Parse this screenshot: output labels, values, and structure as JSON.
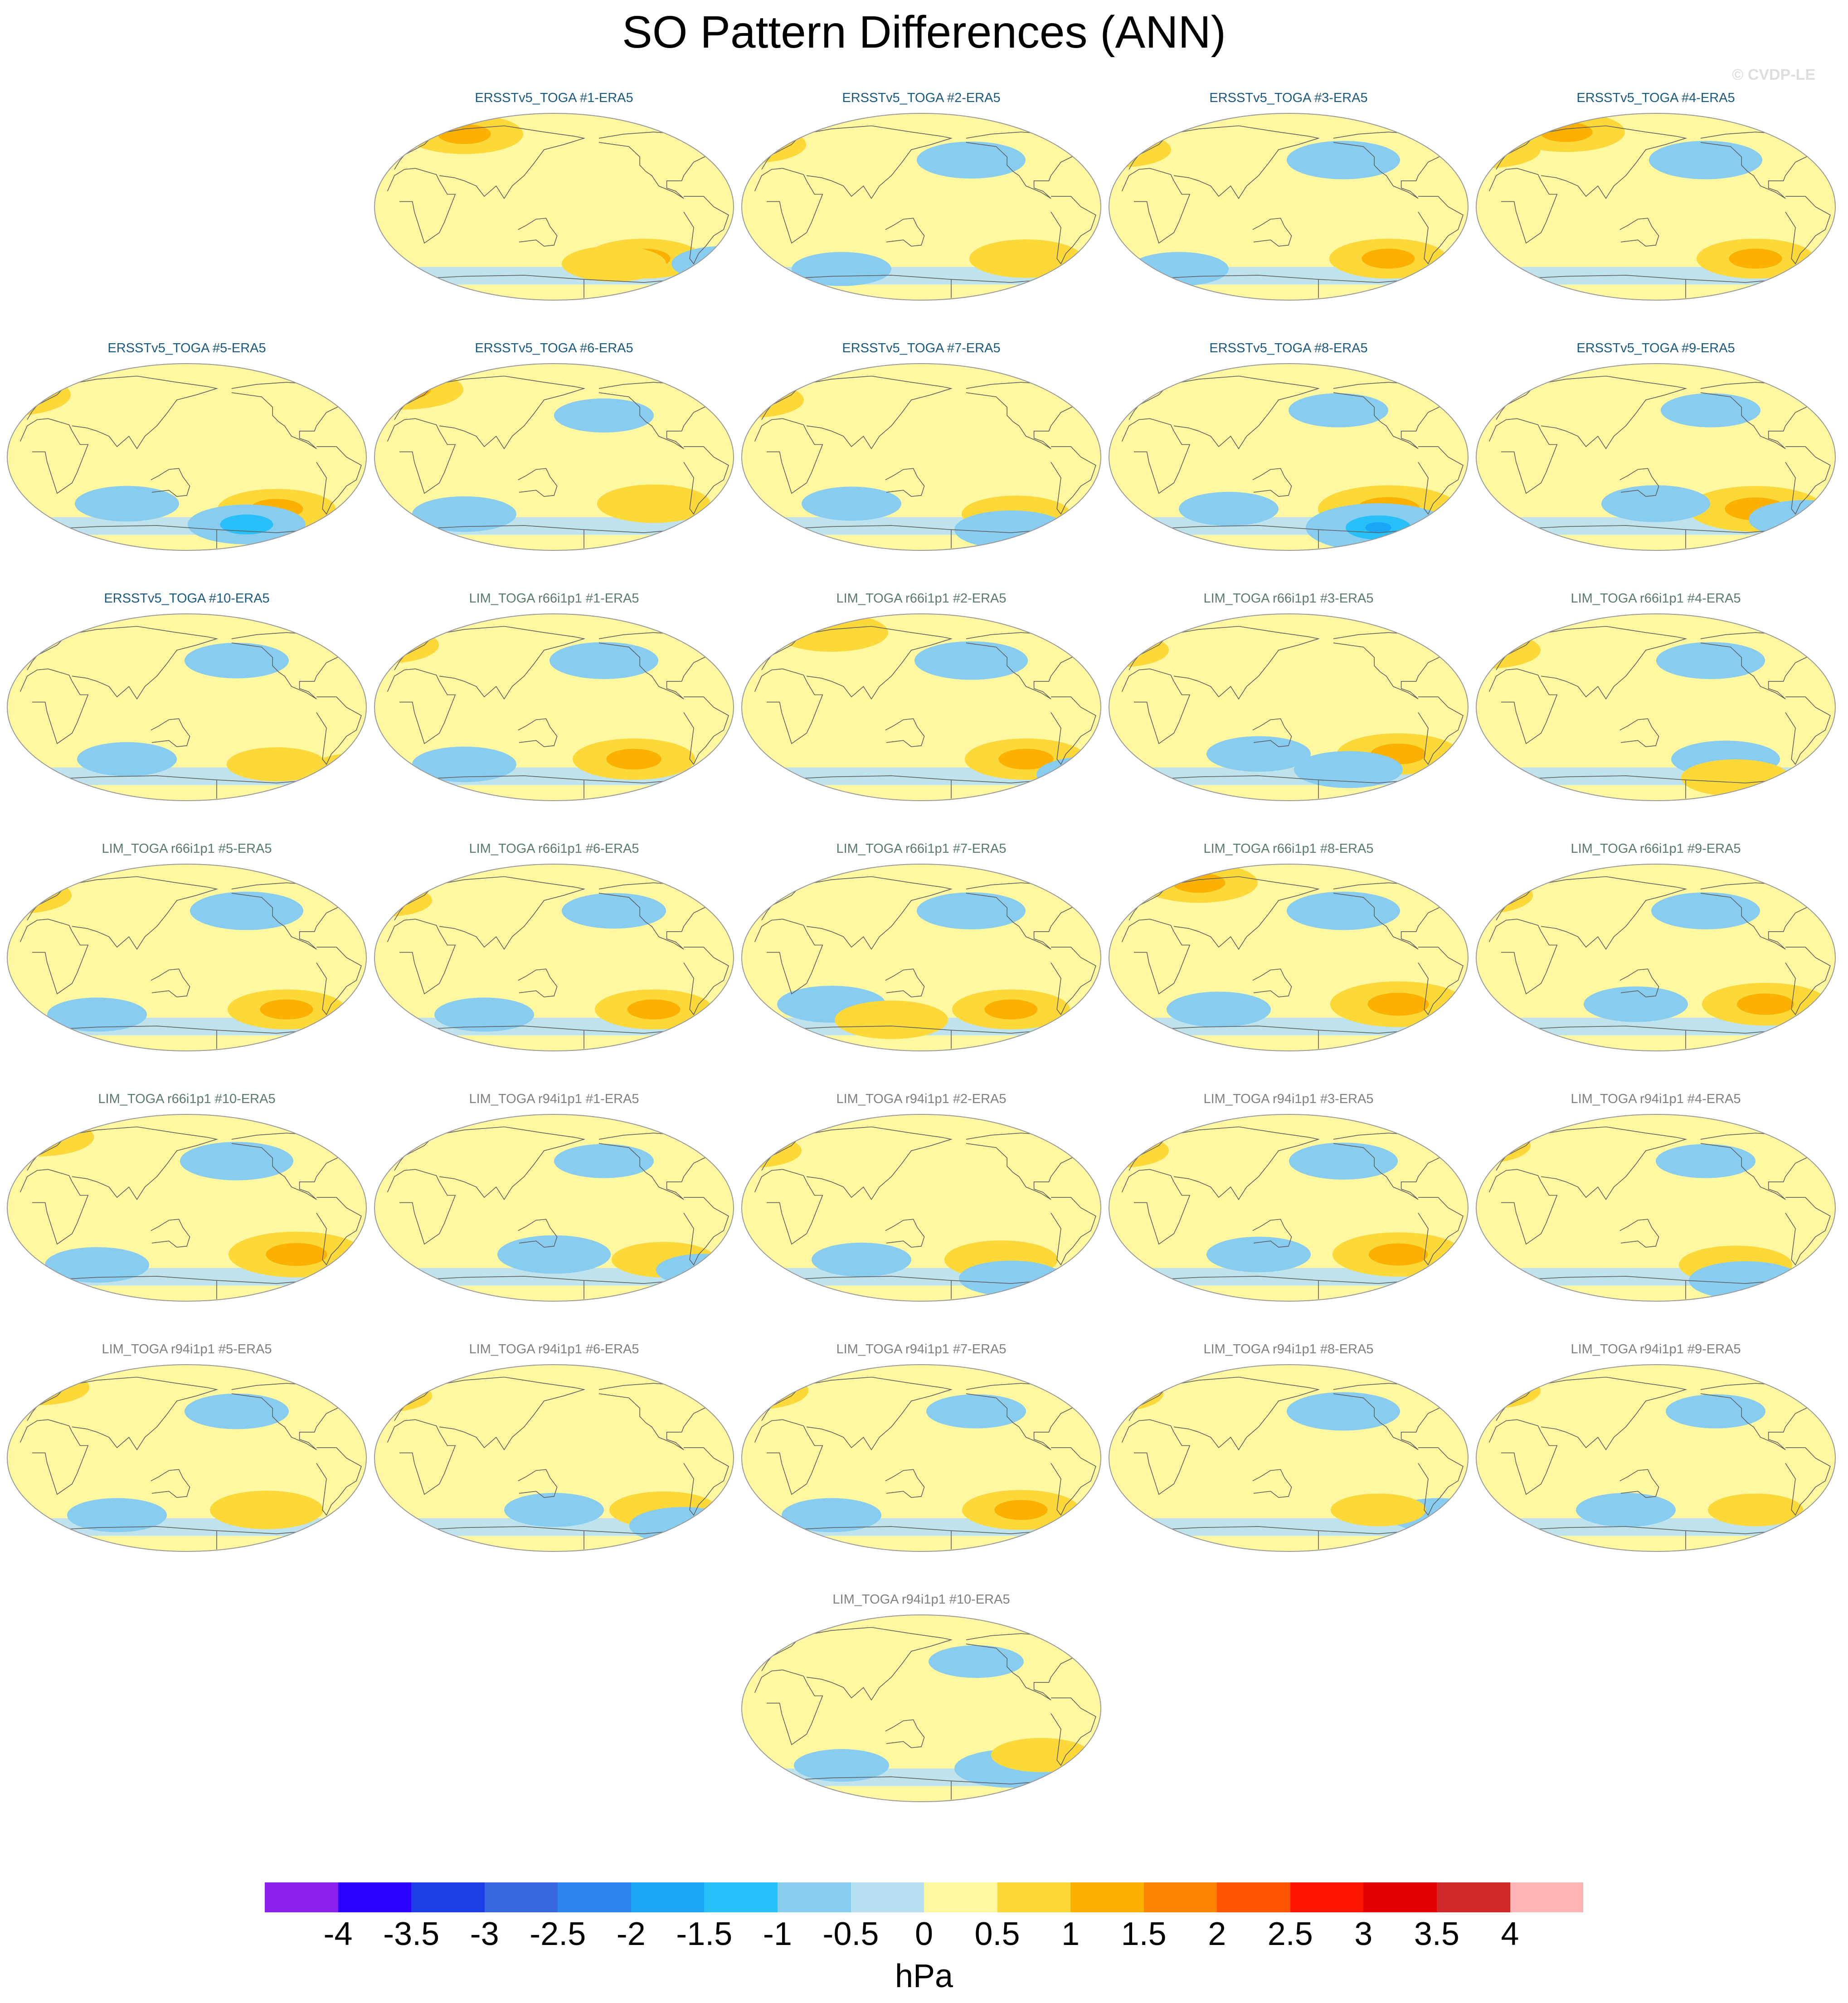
{
  "title": "SO Pattern Differences (ANN)",
  "credit": "© CVDP-LE",
  "units": "hPa",
  "colors": {
    "title_ersst": "#1a5a80",
    "title_lim66": "#5a7a6a",
    "title_lim94": "#808080",
    "land_outline": "#606060",
    "globe_outline": "#9a9a9a"
  },
  "colorbar": {
    "labels": [
      "-4",
      "-3.5",
      "-3",
      "-2.5",
      "-2",
      "-1.5",
      "-1",
      "-0.5",
      "0",
      "0.5",
      "1",
      "1.5",
      "2",
      "2.5",
      "3",
      "3.5",
      "4"
    ],
    "colors": [
      "#8a20ee",
      "#2a00ff",
      "#1c3ee6",
      "#3868e0",
      "#2e84f0",
      "#1aa6f6",
      "#28c0f8",
      "#88cdf0",
      "#b8e0f4",
      "#fff8a0",
      "#fcd838",
      "#fcb000",
      "#fc8400",
      "#fc5400",
      "#fc1400",
      "#e00000",
      "#d02828",
      "#fcb4b4"
    ]
  },
  "chart_data": {
    "type": "heatmap",
    "title": "SO Pattern Differences (ANN)",
    "projection": "global map",
    "colorbar_units": "hPa",
    "levels": [
      -4,
      -3.5,
      -3,
      -2.5,
      -2,
      -1.5,
      -1,
      -0.5,
      0,
      0.5,
      1,
      1.5,
      2,
      2.5,
      3,
      3.5,
      4
    ],
    "panels": [
      {
        "title": "ERSSTv5_TOGA #1-ERA5",
        "group": "ersst",
        "features": [
          {
            "lon": 60,
            "lat": 70,
            "value": 1.0
          },
          {
            "lon": -120,
            "lat": -50,
            "value": 1.0
          },
          {
            "lon": -150,
            "lat": -55,
            "value": 0.7
          },
          {
            "lon": -40,
            "lat": -55,
            "value": -0.7
          }
        ]
      },
      {
        "title": "ERSSTv5_TOGA #2-ERA5",
        "group": "ersst",
        "features": [
          {
            "lon": -160,
            "lat": 45,
            "value": -0.8
          },
          {
            "lon": -105,
            "lat": -50,
            "value": 0.9
          },
          {
            "lon": -20,
            "lat": 60,
            "value": 0.8
          },
          {
            "lon": 70,
            "lat": -60,
            "value": -0.6
          }
        ]
      },
      {
        "title": "ERSSTv5_TOGA #3-ERA5",
        "group": "ersst",
        "features": [
          {
            "lon": -155,
            "lat": 45,
            "value": -0.9
          },
          {
            "lon": -110,
            "lat": -50,
            "value": 1.0
          },
          {
            "lon": -20,
            "lat": 55,
            "value": 0.7
          },
          {
            "lon": 40,
            "lat": -60,
            "value": -0.6
          }
        ]
      },
      {
        "title": "ERSSTv5_TOGA #4-ERA5",
        "group": "ersst",
        "features": [
          {
            "lon": 60,
            "lat": 72,
            "value": 1.0
          },
          {
            "lon": -160,
            "lat": 45,
            "value": -0.9
          },
          {
            "lon": -110,
            "lat": -50,
            "value": 1.0
          },
          {
            "lon": -20,
            "lat": 55,
            "value": 0.8
          }
        ]
      },
      {
        "title": "ERSSTv5_TOGA #5-ERA5",
        "group": "ersst",
        "features": [
          {
            "lon": -30,
            "lat": 60,
            "value": 1.2
          },
          {
            "lon": -120,
            "lat": -50,
            "value": 1.0
          },
          {
            "lon": -150,
            "lat": -65,
            "value": -1.0
          },
          {
            "lon": 90,
            "lat": -45,
            "value": -0.7
          }
        ]
      },
      {
        "title": "ERSSTv5_TOGA #6-ERA5",
        "group": "ersst",
        "features": [
          {
            "lon": 0,
            "lat": 65,
            "value": 1.0
          },
          {
            "lon": -110,
            "lat": -45,
            "value": 0.9
          },
          {
            "lon": 60,
            "lat": -55,
            "value": -0.7
          },
          {
            "lon": -160,
            "lat": 40,
            "value": -0.6
          }
        ]
      },
      {
        "title": "ERSSTv5_TOGA #7-ERA5",
        "group": "ersst",
        "features": [
          {
            "lon": -115,
            "lat": -55,
            "value": 0.8
          },
          {
            "lon": -120,
            "lat": -70,
            "value": -0.9
          },
          {
            "lon": -20,
            "lat": 55,
            "value": 0.7
          },
          {
            "lon": 80,
            "lat": -45,
            "value": -0.6
          }
        ]
      },
      {
        "title": "ERSSTv5_TOGA #8-ERA5",
        "group": "ersst",
        "features": [
          {
            "lon": -110,
            "lat": -50,
            "value": 1.5
          },
          {
            "lon": -120,
            "lat": -68,
            "value": -1.6
          },
          {
            "lon": -160,
            "lat": 45,
            "value": -0.6
          },
          {
            "lon": 90,
            "lat": -50,
            "value": -0.6
          }
        ]
      },
      {
        "title": "ERSSTv5_TOGA #9-ERA5",
        "group": "ersst",
        "features": [
          {
            "lon": -110,
            "lat": -50,
            "value": 1.4
          },
          {
            "lon": -60,
            "lat": -60,
            "value": -0.9
          },
          {
            "lon": 150,
            "lat": -45,
            "value": -0.8
          },
          {
            "lon": -155,
            "lat": 45,
            "value": -0.6
          }
        ]
      },
      {
        "title": "ERSSTv5_TOGA #10-ERA5",
        "group": "ersst",
        "features": [
          {
            "lon": -160,
            "lat": 45,
            "value": -0.7
          },
          {
            "lon": -120,
            "lat": -55,
            "value": 0.6
          },
          {
            "lon": 90,
            "lat": -50,
            "value": -0.6
          },
          {
            "lon": -40,
            "lat": -60,
            "value": 0.5
          }
        ]
      },
      {
        "title": "LIM_TOGA r66i1p1 #1-ERA5",
        "group": "lim66",
        "features": [
          {
            "lon": -130,
            "lat": -50,
            "value": 1.1
          },
          {
            "lon": -160,
            "lat": 45,
            "value": -0.8
          },
          {
            "lon": -20,
            "lat": 60,
            "value": 0.8
          },
          {
            "lon": 60,
            "lat": -55,
            "value": -0.7
          }
        ]
      },
      {
        "title": "LIM_TOGA r66i1p1 #2-ERA5",
        "group": "lim66",
        "features": [
          {
            "lon": -105,
            "lat": -50,
            "value": 1.1
          },
          {
            "lon": -160,
            "lat": 45,
            "value": -0.9
          },
          {
            "lon": 60,
            "lat": 72,
            "value": 0.9
          },
          {
            "lon": -40,
            "lat": -65,
            "value": -0.8
          }
        ]
      },
      {
        "title": "LIM_TOGA r66i1p1 #3-ERA5",
        "group": "lim66",
        "features": [
          {
            "lon": -100,
            "lat": -45,
            "value": 1.1
          },
          {
            "lon": -150,
            "lat": -60,
            "value": -0.8
          },
          {
            "lon": 120,
            "lat": -45,
            "value": -0.7
          },
          {
            "lon": -20,
            "lat": 55,
            "value": 0.6
          }
        ]
      },
      {
        "title": "LIM_TOGA r66i1p1 #4-ERA5",
        "group": "lim66",
        "features": [
          {
            "lon": -140,
            "lat": -50,
            "value": -0.8
          },
          {
            "lon": -130,
            "lat": -68,
            "value": 0.8
          },
          {
            "lon": -155,
            "lat": 45,
            "value": -0.8
          },
          {
            "lon": -20,
            "lat": 55,
            "value": 0.8
          }
        ]
      },
      {
        "title": "LIM_TOGA r66i1p1 #5-ERA5",
        "group": "lim66",
        "features": [
          {
            "lon": -150,
            "lat": 45,
            "value": -0.9
          },
          {
            "lon": -110,
            "lat": -50,
            "value": 1.0
          },
          {
            "lon": -20,
            "lat": 60,
            "value": 0.8
          },
          {
            "lon": 60,
            "lat": -55,
            "value": -0.6
          }
        ]
      },
      {
        "title": "LIM_TOGA r66i1p1 #6-ERA5",
        "group": "lim66",
        "features": [
          {
            "lon": -110,
            "lat": -50,
            "value": 1.0
          },
          {
            "lon": -150,
            "lat": 45,
            "value": -0.7
          },
          {
            "lon": 80,
            "lat": -55,
            "value": -0.6
          },
          {
            "lon": -20,
            "lat": 55,
            "value": 0.5
          }
        ]
      },
      {
        "title": "LIM_TOGA r66i1p1 #7-ERA5",
        "group": "lim66",
        "features": [
          {
            "lon": -120,
            "lat": -50,
            "value": 1.0
          },
          {
            "lon": -160,
            "lat": 45,
            "value": -0.8
          },
          {
            "lon": 60,
            "lat": -45,
            "value": -0.8
          },
          {
            "lon": 120,
            "lat": -60,
            "value": 0.9
          }
        ]
      },
      {
        "title": "LIM_TOGA r66i1p1 #8-ERA5",
        "group": "lim66",
        "features": [
          {
            "lon": -100,
            "lat": -45,
            "value": 1.4
          },
          {
            "lon": -155,
            "lat": 45,
            "value": -0.9
          },
          {
            "lon": 60,
            "lat": 72,
            "value": 1.0
          },
          {
            "lon": 80,
            "lat": -50,
            "value": -0.7
          }
        ]
      },
      {
        "title": "LIM_TOGA r66i1p1 #9-ERA5",
        "group": "lim66",
        "features": [
          {
            "lon": -100,
            "lat": -45,
            "value": 1.2
          },
          {
            "lon": -160,
            "lat": 45,
            "value": -0.8
          },
          {
            "lon": -30,
            "lat": 60,
            "value": 0.9
          },
          {
            "lon": 130,
            "lat": -45,
            "value": -0.7
          }
        ]
      },
      {
        "title": "LIM_TOGA r66i1p1 #10-ERA5",
        "group": "lim66",
        "features": [
          {
            "lon": -100,
            "lat": -45,
            "value": 1.4
          },
          {
            "lon": -160,
            "lat": 45,
            "value": -0.9
          },
          {
            "lon": 0,
            "lat": 68,
            "value": 0.9
          },
          {
            "lon": 60,
            "lat": -55,
            "value": -0.7
          }
        ]
      },
      {
        "title": "LIM_TOGA r94i1p1 #1-ERA5",
        "group": "lim94",
        "features": [
          {
            "lon": 150,
            "lat": -45,
            "value": -0.9
          },
          {
            "lon": -100,
            "lat": -50,
            "value": 0.7
          },
          {
            "lon": -160,
            "lat": 45,
            "value": -0.6
          },
          {
            "lon": -60,
            "lat": -60,
            "value": -0.5
          }
        ]
      },
      {
        "title": "LIM_TOGA r94i1p1 #2-ERA5",
        "group": "lim94",
        "features": [
          {
            "lon": -130,
            "lat": -50,
            "value": 0.9
          },
          {
            "lon": -120,
            "lat": -68,
            "value": -0.7
          },
          {
            "lon": -20,
            "lat": 55,
            "value": 0.6
          },
          {
            "lon": 90,
            "lat": -50,
            "value": -0.6
          }
        ]
      },
      {
        "title": "LIM_TOGA r94i1p1 #3-ERA5",
        "group": "lim94",
        "features": [
          {
            "lon": -100,
            "lat": -45,
            "value": 1.3
          },
          {
            "lon": -155,
            "lat": 45,
            "value": -0.8
          },
          {
            "lon": 120,
            "lat": -45,
            "value": -0.7
          },
          {
            "lon": -20,
            "lat": 55,
            "value": 0.6
          }
        ]
      },
      {
        "title": "LIM_TOGA r94i1p1 #4-ERA5",
        "group": "lim94",
        "features": [
          {
            "lon": -130,
            "lat": -55,
            "value": 0.9
          },
          {
            "lon": -120,
            "lat": -70,
            "value": -0.9
          },
          {
            "lon": -30,
            "lat": 60,
            "value": 0.8
          },
          {
            "lon": -160,
            "lat": 45,
            "value": -0.6
          }
        ]
      },
      {
        "title": "LIM_TOGA r94i1p1 #5-ERA5",
        "group": "lim94",
        "features": [
          {
            "lon": -130,
            "lat": -50,
            "value": 0.9
          },
          {
            "lon": -160,
            "lat": 45,
            "value": -0.7
          },
          {
            "lon": 0,
            "lat": 68,
            "value": 0.7
          },
          {
            "lon": 80,
            "lat": -55,
            "value": -0.6
          }
        ]
      },
      {
        "title": "LIM_TOGA r94i1p1 #6-ERA5",
        "group": "lim94",
        "features": [
          {
            "lon": -100,
            "lat": -50,
            "value": 0.8
          },
          {
            "lon": -80,
            "lat": -65,
            "value": -0.8
          },
          {
            "lon": 150,
            "lat": -50,
            "value": -0.6
          },
          {
            "lon": -20,
            "lat": 60,
            "value": 0.5
          }
        ]
      },
      {
        "title": "LIM_TOGA r94i1p1 #7-ERA5",
        "group": "lim94",
        "features": [
          {
            "lon": -110,
            "lat": -50,
            "value": 1.0
          },
          {
            "lon": -20,
            "lat": 65,
            "value": 0.9
          },
          {
            "lon": -155,
            "lat": 45,
            "value": -0.6
          },
          {
            "lon": 60,
            "lat": -55,
            "value": -0.6
          }
        ]
      },
      {
        "title": "LIM_TOGA r94i1p1 #8-ERA5",
        "group": "lim94",
        "features": [
          {
            "lon": -155,
            "lat": 45,
            "value": -0.9
          },
          {
            "lon": -30,
            "lat": 62,
            "value": 0.8
          },
          {
            "lon": -60,
            "lat": -55,
            "value": -0.6
          },
          {
            "lon": -120,
            "lat": -50,
            "value": 0.5
          }
        ]
      },
      {
        "title": "LIM_TOGA r94i1p1 #9-ERA5",
        "group": "lim94",
        "features": [
          {
            "lon": -20,
            "lat": 65,
            "value": 0.8
          },
          {
            "lon": -150,
            "lat": 45,
            "value": -0.6
          },
          {
            "lon": 120,
            "lat": -50,
            "value": -0.6
          },
          {
            "lon": -110,
            "lat": -50,
            "value": 0.5
          }
        ]
      },
      {
        "title": "LIM_TOGA r94i1p1 #10-ERA5",
        "group": "lim94",
        "features": [
          {
            "lon": -120,
            "lat": -58,
            "value": -0.9
          },
          {
            "lon": -90,
            "lat": -45,
            "value": 0.6
          },
          {
            "lon": -155,
            "lat": 45,
            "value": -0.5
          },
          {
            "lon": 70,
            "lat": -55,
            "value": -0.5
          }
        ]
      }
    ]
  }
}
